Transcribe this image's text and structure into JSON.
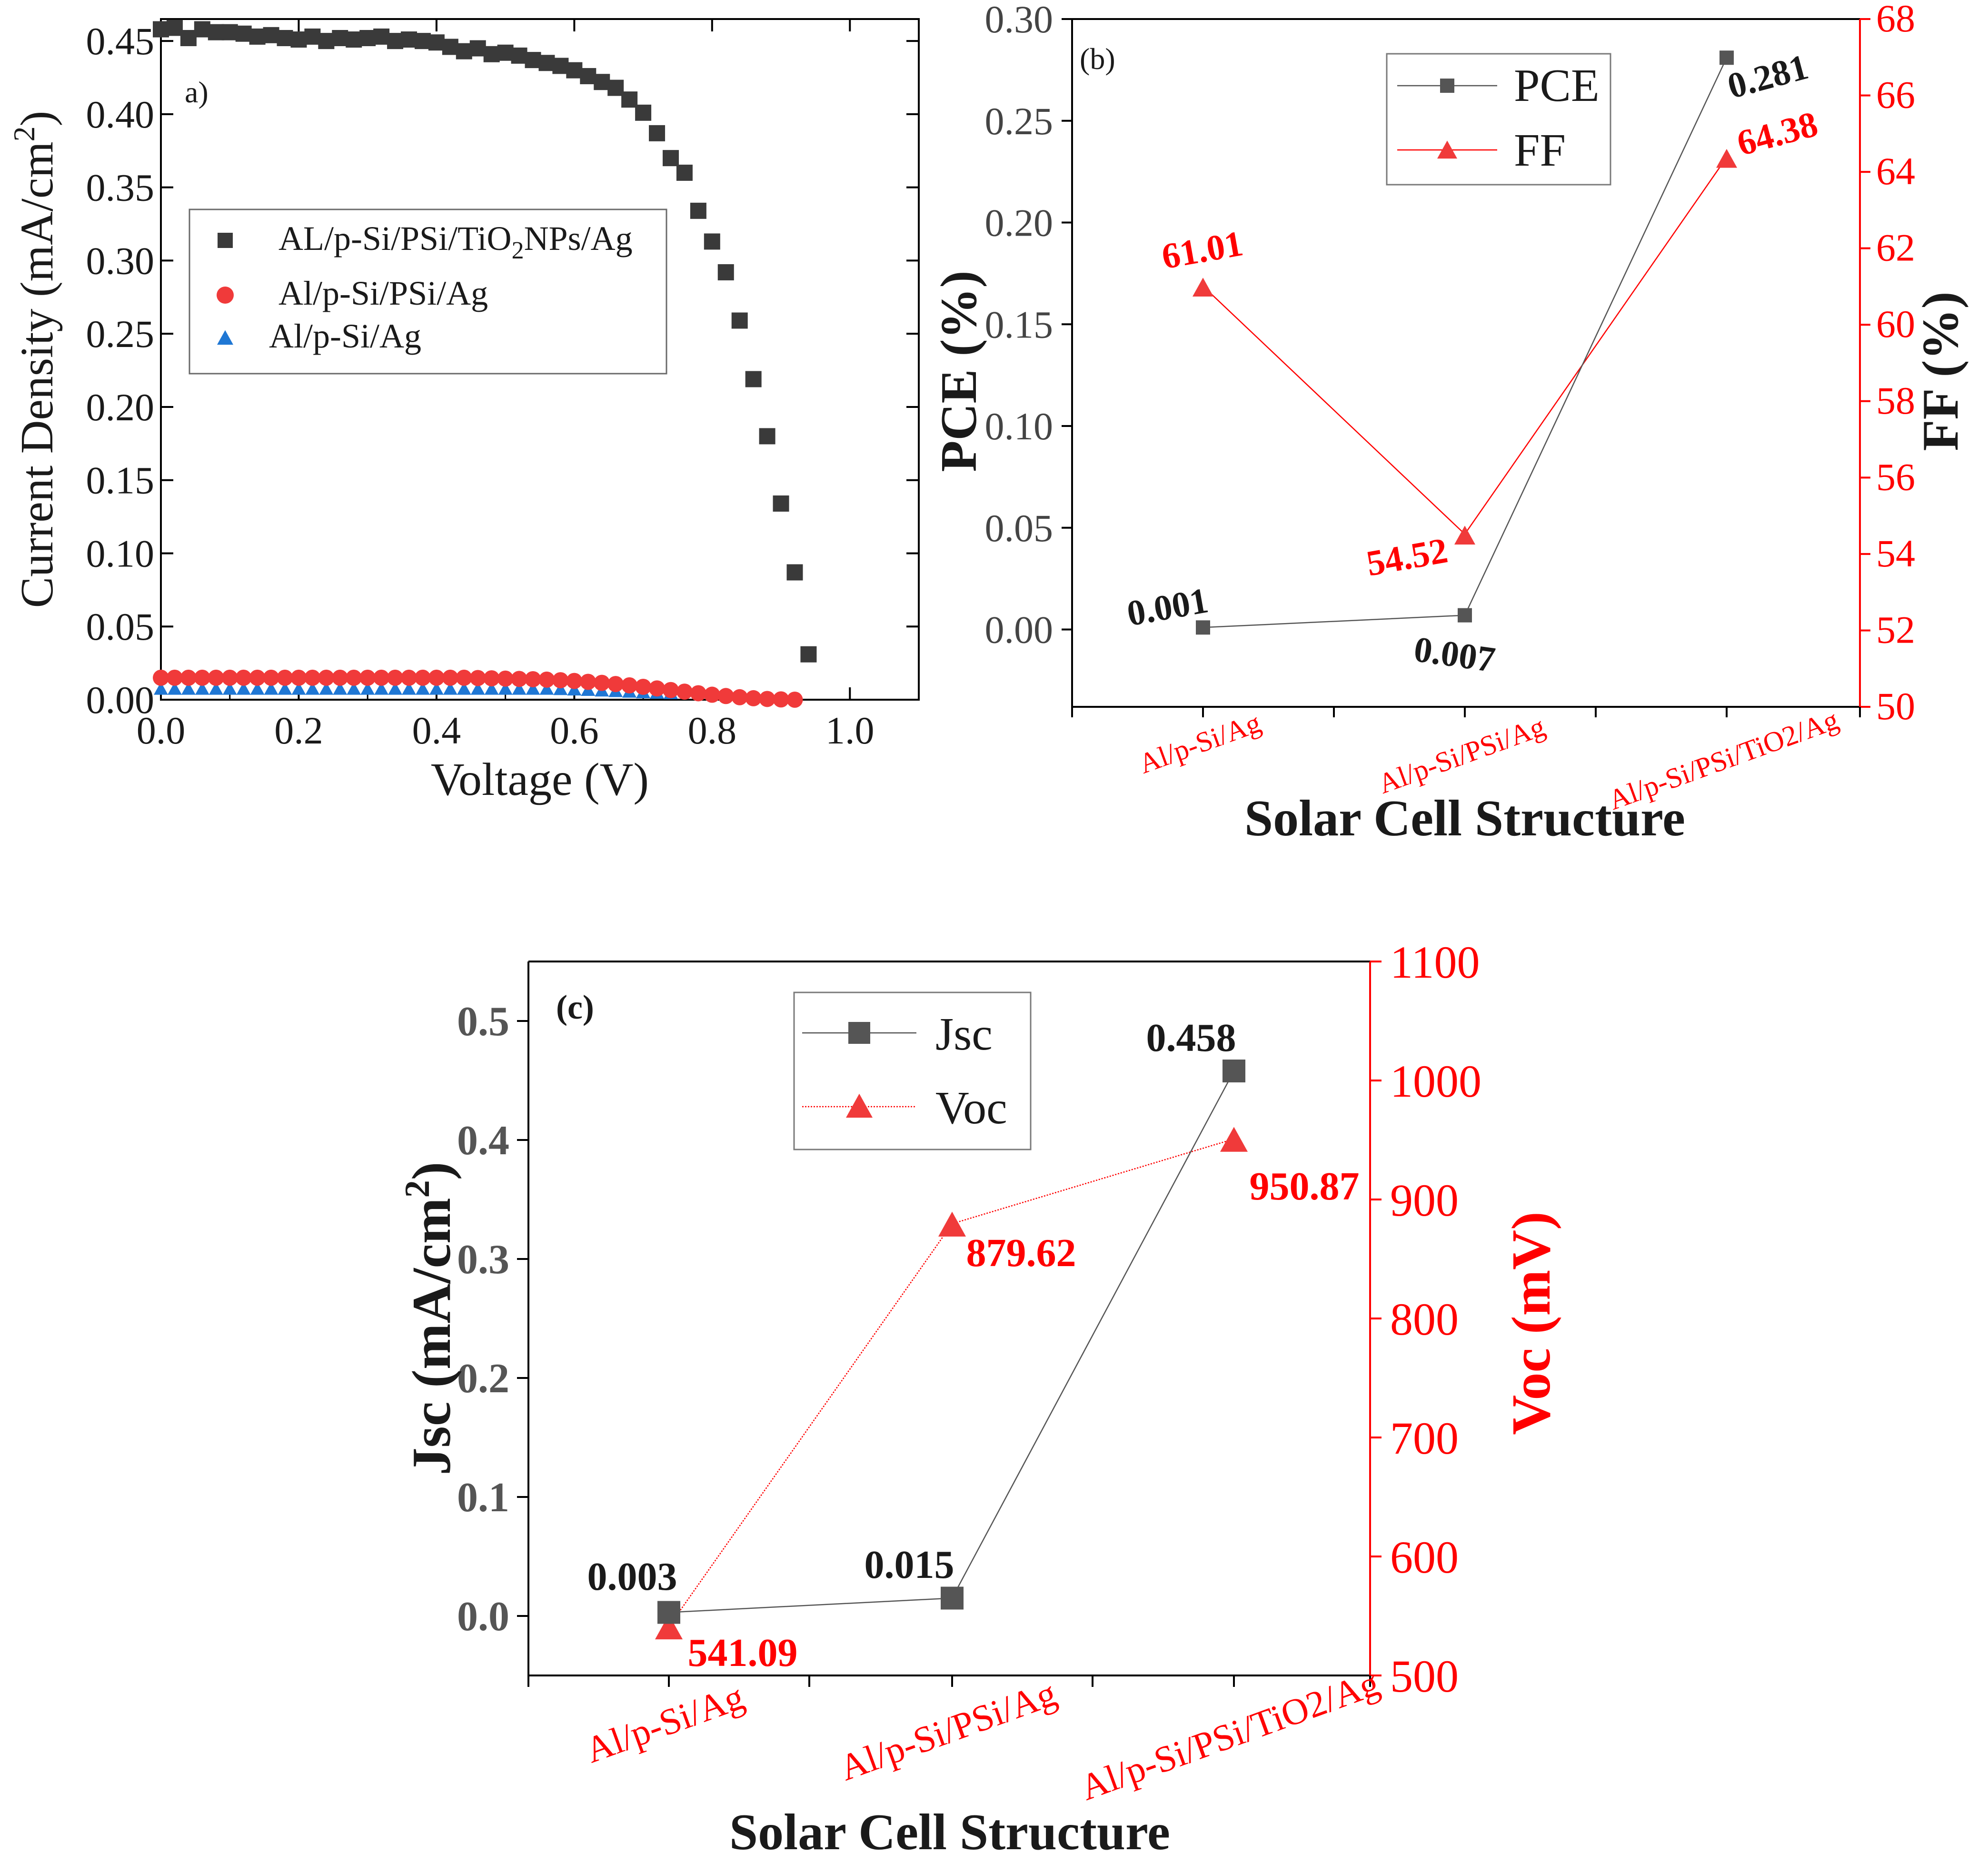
{
  "colors": {
    "black": "#1a1a1a",
    "dark_gray": "#3a3a3a",
    "red": "#ff0000",
    "red_marker": "#f03a3a",
    "blue_marker": "#1f77d4"
  },
  "chart_data": [
    {
      "id": "a",
      "type": "scatter",
      "panel_label": "a)",
      "xlabel": "Voltage (V)",
      "ylabel": "Current Density (mA/cm",
      "ylabel_sup": "2",
      "ylabel_end": ")",
      "xlim": [
        0.0,
        1.1
      ],
      "ylim": [
        0.0,
        0.465
      ],
      "xticks": [
        "0.0",
        "0.2",
        "0.4",
        "0.6",
        "0.8",
        "1.0"
      ],
      "yticks": [
        "0.00",
        "0.05",
        "0.10",
        "0.15",
        "0.20",
        "0.25",
        "0.30",
        "0.35",
        "0.40",
        "0.45"
      ],
      "legend": {
        "position": "center-left",
        "entries": [
          {
            "pre": "AL/p-Si/PSi/TiO",
            "sub": "2",
            "post": "NPs/Ag",
            "marker": "square"
          },
          {
            "pre": "Al/p-Si/PSi/Ag",
            "sub": "",
            "post": "",
            "marker": "circle"
          },
          {
            "pre": "Al/p-Si/Ag",
            "sub": "",
            "post": "",
            "marker": "triangle"
          }
        ]
      },
      "series": [
        {
          "name": "AL/p-Si/PSi/TiO2NPs/Ag",
          "marker": "square",
          "x": [
            0.0,
            0.02,
            0.04,
            0.06,
            0.08,
            0.1,
            0.12,
            0.14,
            0.16,
            0.18,
            0.2,
            0.22,
            0.24,
            0.26,
            0.28,
            0.3,
            0.32,
            0.34,
            0.36,
            0.38,
            0.4,
            0.42,
            0.44,
            0.46,
            0.48,
            0.5,
            0.52,
            0.54,
            0.56,
            0.58,
            0.6,
            0.62,
            0.64,
            0.66,
            0.68,
            0.7,
            0.72,
            0.74,
            0.76,
            0.78,
            0.8,
            0.82,
            0.84,
            0.86,
            0.88,
            0.9,
            0.92,
            0.94
          ],
          "y": [
            0.458,
            0.459,
            0.452,
            0.458,
            0.456,
            0.456,
            0.455,
            0.453,
            0.454,
            0.452,
            0.451,
            0.453,
            0.45,
            0.452,
            0.451,
            0.452,
            0.453,
            0.45,
            0.451,
            0.45,
            0.449,
            0.446,
            0.443,
            0.445,
            0.441,
            0.442,
            0.44,
            0.437,
            0.435,
            0.433,
            0.43,
            0.426,
            0.422,
            0.418,
            0.41,
            0.401,
            0.387,
            0.37,
            0.36,
            0.334,
            0.313,
            0.292,
            0.259,
            0.219,
            0.18,
            0.134,
            0.087,
            0.031
          ]
        },
        {
          "name": "Al/p-Si/PSi/Ag",
          "marker": "circle",
          "x": [
            0.0,
            0.02,
            0.04,
            0.06,
            0.08,
            0.1,
            0.12,
            0.14,
            0.16,
            0.18,
            0.2,
            0.22,
            0.24,
            0.26,
            0.28,
            0.3,
            0.32,
            0.34,
            0.36,
            0.38,
            0.4,
            0.42,
            0.44,
            0.46,
            0.48,
            0.5,
            0.52,
            0.54,
            0.56,
            0.58,
            0.6,
            0.62,
            0.64,
            0.66,
            0.68,
            0.7,
            0.72,
            0.74,
            0.76,
            0.78,
            0.8,
            0.82,
            0.84,
            0.86,
            0.88,
            0.9,
            0.92
          ],
          "y": [
            0.015,
            0.015,
            0.015,
            0.015,
            0.015,
            0.015,
            0.015,
            0.015,
            0.015,
            0.015,
            0.015,
            0.015,
            0.015,
            0.015,
            0.015,
            0.015,
            0.015,
            0.015,
            0.015,
            0.015,
            0.015,
            0.015,
            0.015,
            0.0148,
            0.0146,
            0.0144,
            0.0142,
            0.014,
            0.0137,
            0.0133,
            0.0128,
            0.0122,
            0.0115,
            0.0107,
            0.0098,
            0.0088,
            0.0077,
            0.0066,
            0.0055,
            0.0044,
            0.0034,
            0.0025,
            0.0017,
            0.001,
            0.0005,
            0.0002,
            0.0
          ]
        },
        {
          "name": "Al/p-Si/Ag",
          "marker": "triangle",
          "x": [
            0.0,
            0.02,
            0.04,
            0.06,
            0.08,
            0.1,
            0.12,
            0.14,
            0.16,
            0.18,
            0.2,
            0.22,
            0.24,
            0.26,
            0.28,
            0.3,
            0.32,
            0.34,
            0.36,
            0.38,
            0.4,
            0.42,
            0.44,
            0.46,
            0.48,
            0.5,
            0.52,
            0.54,
            0.56,
            0.58,
            0.6,
            0.62,
            0.64,
            0.66,
            0.68,
            0.7,
            0.72,
            0.74
          ],
          "y": [
            0.003,
            0.003,
            0.003,
            0.003,
            0.003,
            0.003,
            0.003,
            0.003,
            0.003,
            0.003,
            0.003,
            0.003,
            0.003,
            0.003,
            0.003,
            0.003,
            0.003,
            0.003,
            0.003,
            0.003,
            0.003,
            0.003,
            0.003,
            0.003,
            0.003,
            0.003,
            0.003,
            0.003,
            0.003,
            0.0028,
            0.0025,
            0.0022,
            0.0018,
            0.0014,
            0.001,
            0.0006,
            0.0003,
            0.0
          ]
        }
      ]
    },
    {
      "id": "b",
      "type": "line",
      "panel_label": "(b)",
      "xlabel": "Solar Cell Structure",
      "ylabel_left": "PCE (%)",
      "ylabel_right": "FF (%)",
      "categories": [
        "Al/p-Si/Ag",
        "Al/p-Si/PSi/Ag",
        "Al/p-Si/PSi/TiO2/Ag"
      ],
      "ylim_left": [
        -0.038,
        0.3
      ],
      "ylim_right": [
        50,
        68
      ],
      "yticks_left": [
        "0.00",
        "0.05",
        "0.10",
        "0.15",
        "0.20",
        "0.25",
        "0.30"
      ],
      "yticks_right": [
        "50",
        "52",
        "54",
        "56",
        "58",
        "60",
        "62",
        "64",
        "66",
        "68"
      ],
      "legend": {
        "position": "top-center",
        "entries": [
          "PCE",
          "FF"
        ]
      },
      "series": [
        {
          "name": "PCE",
          "axis": "left",
          "marker": "square",
          "values": [
            0.001,
            0.007,
            0.281
          ],
          "labels": [
            "0.001",
            "0.007",
            "0.281"
          ]
        },
        {
          "name": "FF",
          "axis": "right",
          "marker": "triangle",
          "values": [
            61.01,
            54.52,
            64.38
          ],
          "labels": [
            "61.01",
            "54.52",
            "64.38"
          ]
        }
      ]
    },
    {
      "id": "c",
      "type": "line",
      "panel_label": "(c)",
      "xlabel": "Solar Cell Structure",
      "ylabel_left": "Jsc (mA/cm",
      "ylabel_left_sup": "2",
      "ylabel_left_end": ")",
      "ylabel_right": "Voc (mV)",
      "categories": [
        "Al/p-Si/Ag",
        "Al/p-Si/PSi/Ag",
        "Al/p-Si/PSi/TiO2/Ag"
      ],
      "ylim_left": [
        -0.05,
        0.55
      ],
      "ylim_right": [
        500,
        1100
      ],
      "yticks_left": [
        "0.0",
        "0.1",
        "0.2",
        "0.3",
        "0.4",
        "0.5"
      ],
      "yticks_right": [
        "500",
        "600",
        "700",
        "800",
        "900",
        "1000",
        "1100"
      ],
      "legend": {
        "position": "top-left",
        "entries": [
          "Jsc",
          "Voc"
        ]
      },
      "series": [
        {
          "name": "Jsc",
          "axis": "left",
          "marker": "square",
          "values": [
            0.003,
            0.015,
            0.458
          ],
          "labels": [
            "0.003",
            "0.015",
            "0.458"
          ]
        },
        {
          "name": "Voc",
          "axis": "right",
          "marker": "triangle",
          "values": [
            541.09,
            879.62,
            950.87
          ],
          "labels": [
            "541.09",
            "879.62",
            "950.87"
          ]
        }
      ]
    }
  ]
}
